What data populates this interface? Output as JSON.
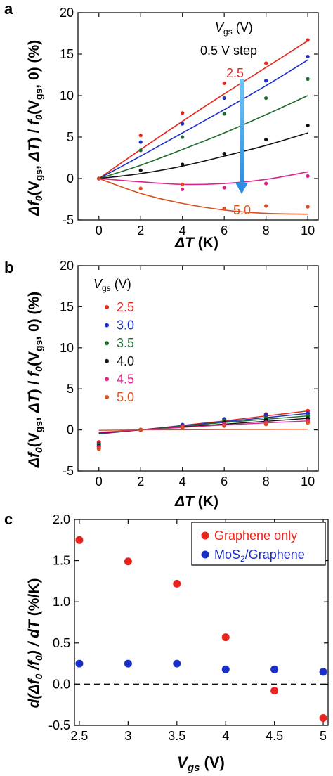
{
  "chart_data": [
    {
      "panel_label": "a",
      "type": "scatter",
      "xlabel_italic": "ΔT",
      "xlabel_unit": " (K)",
      "ylabel": {
        "a": "Δf",
        "b": "0",
        "c": "(V",
        "d": "gs",
        "e": ", ",
        "f": "ΔT",
        "g": ") / ",
        "h": "f",
        "i": "0",
        "j": "(V",
        "k": "gs",
        "l": ", 0) (%)"
      },
      "xlim": [
        -1,
        10.5
      ],
      "ylim": [
        -5,
        20
      ],
      "xticks": [
        "0",
        "2",
        "4",
        "6",
        "8",
        "10"
      ],
      "yticks": [
        "-5",
        "0",
        "5",
        "10",
        "15",
        "20"
      ],
      "legend_title": {
        "v": "V",
        "sub": "gs",
        "unit": " (V)"
      },
      "step_label": "0.5 V step",
      "arrow_start_label": "2.5",
      "arrow_end_label": "5.0",
      "series": [
        {
          "color": "#e8241c",
          "x": [
            0,
            2,
            4,
            6,
            8,
            10
          ],
          "points": [
            0,
            5.2,
            7.9,
            11.5,
            13.9,
            16.7
          ],
          "curve": [
            0,
            3.5,
            6.9,
            10.2,
            13.4,
            16.6
          ]
        },
        {
          "color": "#1a2fc8",
          "x": [
            0,
            2,
            4,
            6,
            8,
            10
          ],
          "points": [
            0,
            4.4,
            6.6,
            9.7,
            11.8,
            14.7
          ],
          "curve": [
            0,
            2.7,
            5.5,
            8.3,
            11.2,
            14.3
          ]
        },
        {
          "color": "#1e6b2e",
          "x": [
            0,
            2,
            4,
            6,
            8,
            10
          ],
          "points": [
            0,
            3.4,
            5.0,
            7.8,
            9.7,
            12.0
          ],
          "curve": [
            0,
            1.6,
            3.5,
            5.5,
            7.7,
            10.0
          ]
        },
        {
          "color": "#111111",
          "x": [
            0,
            2,
            4,
            6,
            8,
            10
          ],
          "points": [
            0,
            1.0,
            1.7,
            3.0,
            4.7,
            6.4
          ],
          "curve": [
            0,
            0.6,
            1.5,
            2.7,
            4.0,
            5.5
          ]
        },
        {
          "color": "#e0208c",
          "x": [
            0,
            2,
            4,
            6,
            8,
            10
          ],
          "points": [
            0,
            -1.2,
            -1.3,
            -1.1,
            -0.6,
            0.3
          ],
          "curve": [
            0,
            -0.4,
            -0.7,
            -0.6,
            -0.1,
            0.8
          ]
        },
        {
          "color": "#d94f1e",
          "x": [
            0,
            2,
            4,
            6,
            8,
            10
          ],
          "points": [
            0,
            -1.2,
            -0.7,
            -3.6,
            -3.3,
            -3.4
          ],
          "curve": [
            0,
            -1.8,
            -3.0,
            -3.8,
            -4.2,
            -4.3
          ]
        }
      ]
    },
    {
      "panel_label": "b",
      "type": "scatter",
      "xlabel_italic": "ΔT",
      "xlabel_unit": " (K)",
      "ylabel": {
        "a": "Δf",
        "b": "0",
        "c": "(V",
        "d": "gs",
        "e": ", ",
        "f": "ΔT",
        "g": ") / ",
        "h": "f",
        "i": "0",
        "j": "(V",
        "k": "gs",
        "l": ", 0) (%)"
      },
      "xlim": [
        -1,
        10.5
      ],
      "ylim": [
        -5,
        20
      ],
      "xticks": [
        "0",
        "2",
        "4",
        "6",
        "8",
        "10"
      ],
      "yticks": [
        "-5",
        "0",
        "5",
        "10",
        "15",
        "20"
      ],
      "legend_title": {
        "v": "V",
        "sub": "gs",
        "unit": " (V)"
      },
      "series": [
        {
          "name": "2.5",
          "color": "#e8241c",
          "x": [
            0,
            2,
            4,
            6,
            8,
            10
          ],
          "points": [
            -1.5,
            0,
            0.6,
            1.3,
            1.9,
            2.3
          ],
          "curve": [
            -0.5,
            0,
            0.55,
            1.1,
            1.7,
            2.3
          ]
        },
        {
          "name": "3.0",
          "color": "#1a2fc8",
          "x": [
            0,
            2,
            4,
            6,
            8,
            10
          ],
          "points": [
            -1.7,
            0,
            0.6,
            1.3,
            1.8,
            2.0
          ],
          "curve": [
            -0.45,
            0,
            0.5,
            1.0,
            1.5,
            2.0
          ]
        },
        {
          "name": "3.5",
          "color": "#1e6b2e",
          "x": [
            0,
            2,
            4,
            6,
            8,
            10
          ],
          "points": [
            -1.8,
            0,
            0.5,
            1.1,
            1.5,
            1.7
          ],
          "curve": [
            -0.4,
            0,
            0.45,
            0.9,
            1.3,
            1.7
          ]
        },
        {
          "name": "4.0",
          "color": "#111111",
          "x": [
            0,
            2,
            4,
            6,
            8,
            10
          ],
          "points": [
            -2.0,
            0,
            0.4,
            0.9,
            1.2,
            1.4
          ],
          "curve": [
            -0.35,
            0,
            0.35,
            0.7,
            1.05,
            1.4
          ]
        },
        {
          "name": "4.5",
          "color": "#e0208c",
          "x": [
            0,
            2,
            4,
            6,
            8,
            10
          ],
          "points": [
            -2.1,
            0,
            0.4,
            0.7,
            0.9,
            1.1
          ],
          "curve": [
            -0.3,
            0,
            0.3,
            0.6,
            0.85,
            1.1
          ]
        },
        {
          "name": "5.0",
          "color": "#d94f1e",
          "x": [
            0,
            2,
            4,
            6,
            8,
            10
          ],
          "points": [
            -2.3,
            0,
            0.3,
            0.5,
            0.7,
            0.9
          ],
          "curve": [
            -0.05,
            0,
            0.02,
            0.04,
            0.06,
            0.08
          ]
        }
      ]
    },
    {
      "panel_label": "c",
      "type": "scatter",
      "xlabel": {
        "v": "V",
        "sub": "gs",
        "unit": " (V)"
      },
      "ylabel": {
        "a": "d(",
        "b": "Δf",
        "c": "0",
        "d": " /",
        "e": "f",
        "f": "0",
        "g": ") / ",
        "h": "dT",
        "i": " (%/K)"
      },
      "xlim": [
        2.45,
        5.05
      ],
      "ylim": [
        -0.5,
        2.0
      ],
      "xticks": [
        "2.5",
        "3",
        "3.5",
        "4",
        "4.5",
        "5"
      ],
      "yticks": [
        "-0.5",
        "0.0",
        "0.5",
        "1.0",
        "1.5",
        "2.0"
      ],
      "reference_line": 0,
      "series": [
        {
          "name": "Graphene only",
          "color": "#e8241c",
          "x": [
            2.5,
            3.0,
            3.5,
            4.0,
            4.5,
            5.0
          ],
          "values": [
            1.75,
            1.49,
            1.22,
            0.57,
            -0.08,
            -0.41
          ]
        },
        {
          "name_a": "MoS",
          "name_sub": "2",
          "name_b": "/Graphene",
          "color": "#1a2fc8",
          "x": [
            2.5,
            3.0,
            3.5,
            4.0,
            4.5,
            5.0
          ],
          "values": [
            0.25,
            0.25,
            0.25,
            0.18,
            0.18,
            0.15
          ]
        }
      ]
    }
  ]
}
